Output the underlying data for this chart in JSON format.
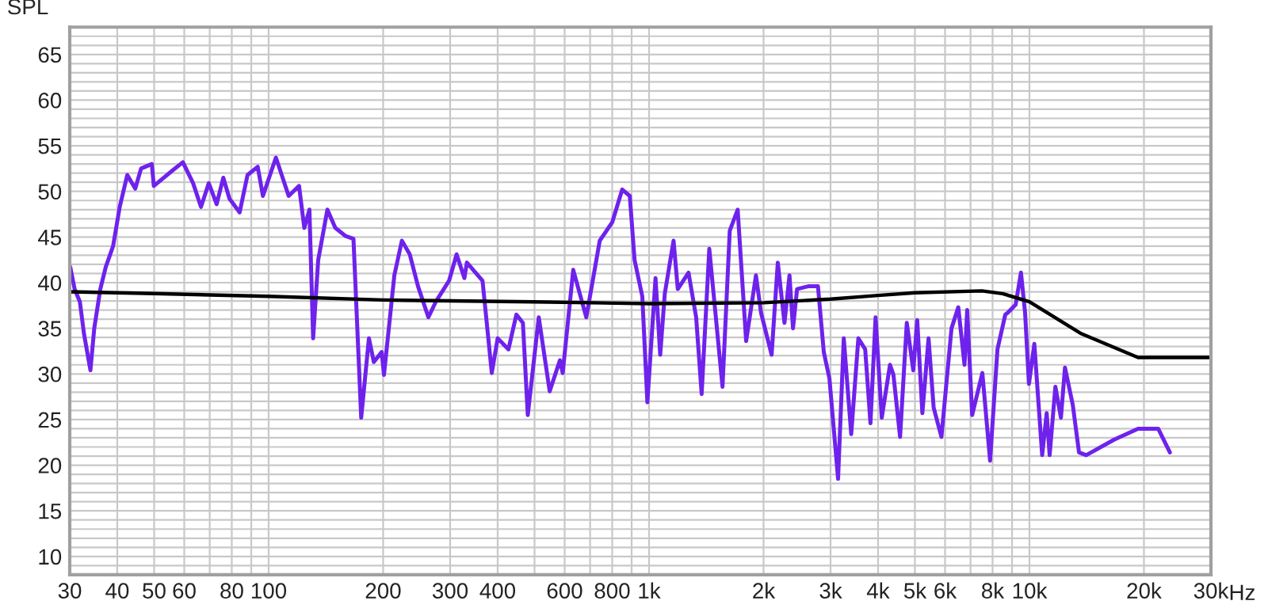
{
  "chart_data": {
    "type": "line",
    "ylabel": "SPL",
    "log": "x",
    "grid": true,
    "marker": "none",
    "line_style": "solid",
    "xlim": [
      30,
      30000
    ],
    "ylim": [
      8,
      68
    ],
    "xticks": [
      30,
      40,
      50,
      60,
      {
        "value": 70,
        "label": null
      },
      80,
      {
        "value": 90,
        "label": null
      },
      100,
      200,
      300,
      400,
      {
        "value": 500,
        "label": null
      },
      600,
      {
        "value": 700,
        "label": null
      },
      800,
      {
        "value": 900,
        "label": null
      },
      {
        "value": 1000,
        "label": "1k"
      },
      {
        "value": 2000,
        "label": "2k"
      },
      {
        "value": 3000,
        "label": "3k"
      },
      {
        "value": 4000,
        "label": "4k"
      },
      {
        "value": 5000,
        "label": "5k"
      },
      {
        "value": 6000,
        "label": "6k"
      },
      {
        "value": 7000,
        "label": null
      },
      {
        "value": 8000,
        "label": "8k"
      },
      {
        "value": 9000,
        "label": null
      },
      {
        "value": 10000,
        "label": "10k"
      },
      {
        "value": 20000,
        "label": "20k"
      },
      {
        "value": 30000,
        "label": "30k"
      }
    ],
    "xlabel": "Hz",
    "yticks": [
      {
        "value": 9,
        "label": null
      },
      10,
      {
        "value": 11,
        "label": null
      },
      {
        "value": 12,
        "label": null
      },
      {
        "value": 13,
        "label": null
      },
      {
        "value": 14,
        "label": null
      },
      15,
      {
        "value": 16,
        "label": null
      },
      {
        "value": 17,
        "label": null
      },
      {
        "value": 18,
        "label": null
      },
      {
        "value": 19,
        "label": null
      },
      20,
      {
        "value": 21,
        "label": null
      },
      {
        "value": 22,
        "label": null
      },
      {
        "value": 23,
        "label": null
      },
      {
        "value": 24,
        "label": null
      },
      25,
      {
        "value": 26,
        "label": null
      },
      {
        "value": 27,
        "label": null
      },
      {
        "value": 28,
        "label": null
      },
      {
        "value": 29,
        "label": null
      },
      30,
      {
        "value": 31,
        "label": null
      },
      {
        "value": 32,
        "label": null
      },
      {
        "value": 33,
        "label": null
      },
      {
        "value": 34,
        "label": null
      },
      35,
      {
        "value": 36,
        "label": null
      },
      {
        "value": 37,
        "label": null
      },
      {
        "value": 38,
        "label": null
      },
      {
        "value": 39,
        "label": null
      },
      40,
      {
        "value": 41,
        "label": null
      },
      {
        "value": 42,
        "label": null
      },
      {
        "value": 43,
        "label": null
      },
      {
        "value": 44,
        "label": null
      },
      45,
      {
        "value": 46,
        "label": null
      },
      {
        "value": 47,
        "label": null
      },
      {
        "value": 48,
        "label": null
      },
      {
        "value": 49,
        "label": null
      },
      50,
      {
        "value": 51,
        "label": null
      },
      {
        "value": 52,
        "label": null
      },
      {
        "value": 53,
        "label": null
      },
      {
        "value": 54,
        "label": null
      },
      55,
      {
        "value": 56,
        "label": null
      },
      {
        "value": 57,
        "label": null
      },
      {
        "value": 58,
        "label": null
      },
      {
        "value": 59,
        "label": null
      },
      60,
      {
        "value": 61,
        "label": null
      },
      {
        "value": 62,
        "label": null
      },
      {
        "value": 63,
        "label": null
      },
      {
        "value": 64,
        "label": null
      },
      65,
      {
        "value": 66,
        "label": null
      },
      {
        "value": 67,
        "label": null
      }
    ],
    "series": [
      {
        "color": "#6e22ec",
        "x": [
          30.1,
          30.9,
          31.9,
          32.7,
          34.0,
          34.8,
          36.1,
          37.3,
          39.0,
          40.6,
          42.5,
          44.6,
          46.2,
          49.3,
          49.9,
          55.9,
          59.5,
          63.3,
          66.4,
          69.6,
          73.0,
          76.0,
          78.9,
          83.9,
          88.0,
          93.6,
          96.6,
          104.5,
          112.9,
          120.2,
          124.1,
          128,
          130.9,
          135,
          142.7,
          149.7,
          159.4,
          167.1,
          175.1,
          183.5,
          189.0,
          198.2,
          201,
          214,
          224,
          235,
          247,
          263,
          275,
          298,
          312,
          327,
          332,
          365,
          386,
          400,
          427,
          448,
          466,
          480,
          513,
          548,
          583,
          593,
          632,
          684,
          742,
          800,
          850,
          890,
          916,
          960,
          990,
          1040,
          1070,
          1100,
          1160,
          1190,
          1270,
          1330,
          1375,
          1440,
          1560,
          1630,
          1710,
          1800,
          1910,
          1970,
          2100,
          2180,
          2270,
          2340,
          2390,
          2450,
          2620,
          2780,
          2880,
          2980,
          3140,
          3250,
          3400,
          3550,
          3700,
          3820,
          3940,
          4090,
          4300,
          4390,
          4570,
          4760,
          4950,
          5070,
          5230,
          5430,
          5600,
          5870,
          6240,
          6500,
          6750,
          6860,
          7070,
          7520,
          7880,
          8240,
          8640,
          8770,
          9200,
          9500,
          9740,
          9970,
          10300,
          10800,
          11100,
          11300,
          11700,
          12100,
          12400,
          13000,
          13500,
          14100,
          16700,
          19300,
          21800,
          23400
        ],
        "values": [
          41.7,
          39.3,
          37.9,
          34.4,
          30.4,
          35.0,
          39.3,
          41.7,
          44.0,
          48.3,
          51.8,
          50.3,
          52.5,
          53.0,
          50.6,
          52.3,
          53.2,
          50.9,
          48.3,
          50.9,
          48.6,
          51.5,
          49.2,
          47.7,
          51.8,
          52.7,
          49.5,
          53.7,
          49.5,
          50.6,
          46.0,
          48.0,
          33.9,
          42.5,
          48.0,
          46.0,
          45.1,
          44.8,
          25.2,
          33.9,
          31.3,
          32.4,
          29.9,
          40.8,
          44.6,
          43.1,
          39.6,
          36.2,
          37.9,
          40.2,
          43.1,
          40.5,
          42.2,
          40.2,
          30.1,
          33.9,
          32.7,
          36.5,
          35.6,
          25.5,
          36.2,
          28.1,
          31.5,
          30.1,
          41.4,
          36.2,
          44.6,
          46.6,
          50.2,
          49.5,
          42.5,
          38.5,
          26.9,
          40.5,
          32.1,
          38.8,
          44.6,
          39.3,
          41.1,
          36.2,
          27.8,
          43.7,
          28.6,
          45.7,
          48.0,
          33.6,
          40.8,
          36.7,
          32.1,
          42.2,
          35.6,
          40.8,
          35.0,
          39.3,
          39.6,
          39.6,
          32.4,
          29.5,
          18.5,
          33.9,
          23.4,
          33.9,
          32.7,
          24.6,
          36.2,
          25.2,
          31.0,
          29.9,
          23.1,
          35.6,
          30.4,
          35.9,
          25.7,
          33.9,
          26.3,
          23.1,
          35.0,
          37.3,
          31.0,
          37.0,
          25.5,
          30.1,
          20.5,
          32.7,
          36.5,
          36.7,
          37.6,
          41.1,
          36.7,
          28.9,
          33.3,
          21.1,
          25.7,
          21.1,
          28.6,
          25.2,
          30.7,
          26.6,
          21.4,
          21.1,
          22.8,
          24.0,
          24.0,
          21.4
        ]
      },
      {
        "color": "#000000",
        "x": [
          30,
          50,
          100,
          200,
          500,
          1000,
          2000,
          3000,
          4000,
          5000,
          7500,
          8500,
          10000,
          13700,
          19300,
          20000,
          30000
        ],
        "values": [
          39.0,
          38.8,
          38.5,
          38.1,
          37.9,
          37.7,
          37.8,
          38.2,
          38.6,
          38.9,
          39.1,
          38.8,
          37.9,
          34.4,
          31.8,
          31.8,
          31.8
        ]
      }
    ]
  }
}
